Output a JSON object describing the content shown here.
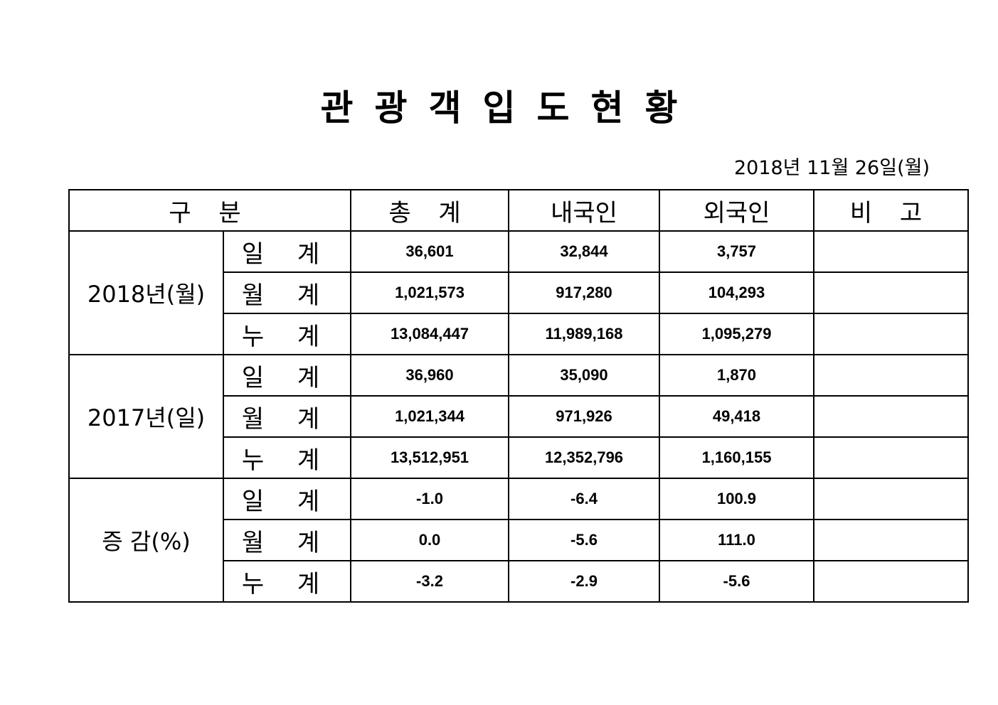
{
  "title": "관광객입도현황",
  "date": "2018년  11월  26일(월)",
  "table": {
    "headers": [
      "구  분",
      "총  계",
      "내국인",
      "외국인",
      "비  고"
    ],
    "groups": [
      {
        "label": "2018년(월)",
        "rows": [
          {
            "sub": "일 계",
            "total": "36,601",
            "domestic": "32,844",
            "foreign": "3,757",
            "note": ""
          },
          {
            "sub": "월 계",
            "total": "1,021,573",
            "domestic": "917,280",
            "foreign": "104,293",
            "note": ""
          },
          {
            "sub": "누 계",
            "total": "13,084,447",
            "domestic": "11,989,168",
            "foreign": "1,095,279",
            "note": ""
          }
        ]
      },
      {
        "label": "2017년(일)",
        "rows": [
          {
            "sub": "일 계",
            "total": "36,960",
            "domestic": "35,090",
            "foreign": "1,870",
            "note": ""
          },
          {
            "sub": "월 계",
            "total": "1,021,344",
            "domestic": "971,926",
            "foreign": "49,418",
            "note": ""
          },
          {
            "sub": "누 계",
            "total": "13,512,951",
            "domestic": "12,352,796",
            "foreign": "1,160,155",
            "note": ""
          }
        ]
      },
      {
        "label": "증 감(%)",
        "rows": [
          {
            "sub": "일 계",
            "total": "-1.0",
            "domestic": "-6.4",
            "foreign": "100.9",
            "note": ""
          },
          {
            "sub": "월 계",
            "total": "0.0",
            "domestic": "-5.6",
            "foreign": "111.0",
            "note": ""
          },
          {
            "sub": "누 계",
            "total": "-3.2",
            "domestic": "-2.9",
            "foreign": "-5.6",
            "note": ""
          }
        ]
      }
    ]
  }
}
